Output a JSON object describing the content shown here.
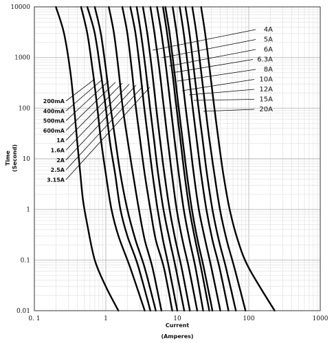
{
  "chart_data": {
    "type": "line",
    "xlabel": "Current",
    "xlabel_unit": "(Amperes)",
    "ylabel": "Time",
    "ylabel_unit": "(Second)",
    "x_scale": "log",
    "y_scale": "log",
    "xlim": [
      0.1,
      1000
    ],
    "ylim": [
      0.01,
      10000
    ],
    "grid": true,
    "x_ticks": [
      {
        "value": 0.1,
        "label": "0. 1"
      },
      {
        "value": 1,
        "label": "1"
      },
      {
        "value": 10,
        "label": "10"
      },
      {
        "value": 100,
        "label": "100"
      },
      {
        "value": 1000,
        "label": "1000"
      }
    ],
    "y_ticks": [
      {
        "value": 0.01,
        "label": "0.01"
      },
      {
        "value": 0.1,
        "label": "0.1"
      },
      {
        "value": 1,
        "label": "1"
      },
      {
        "value": 10,
        "label": "10"
      },
      {
        "value": 100,
        "label": "100"
      },
      {
        "value": 1000,
        "label": "1000"
      },
      {
        "value": 10000,
        "label": "10000"
      }
    ],
    "series": [
      {
        "name": "200mA",
        "points": [
          [
            0.2,
            10000
          ],
          [
            0.26,
            3000
          ],
          [
            0.32,
            500
          ],
          [
            0.36,
            100
          ],
          [
            0.4,
            20
          ],
          [
            0.44,
            5
          ],
          [
            0.48,
            1.5
          ],
          [
            0.55,
            0.5
          ],
          [
            0.7,
            0.1
          ],
          [
            1.0,
            0.03
          ],
          [
            1.5,
            0.01
          ]
        ]
      },
      {
        "name": "400mA",
        "points": [
          [
            0.45,
            10000
          ],
          [
            0.55,
            3000
          ],
          [
            0.65,
            600
          ],
          [
            0.75,
            120
          ],
          [
            0.85,
            25
          ],
          [
            1.0,
            5
          ],
          [
            1.2,
            1
          ],
          [
            1.5,
            0.3
          ],
          [
            2.2,
            0.07
          ],
          [
            3.5,
            0.01
          ]
        ]
      },
      {
        "name": "500mA",
        "points": [
          [
            0.55,
            10000
          ],
          [
            0.7,
            3000
          ],
          [
            0.85,
            500
          ],
          [
            1.0,
            100
          ],
          [
            1.15,
            20
          ],
          [
            1.35,
            5
          ],
          [
            1.6,
            1
          ],
          [
            2.0,
            0.3
          ],
          [
            2.8,
            0.08
          ],
          [
            4.2,
            0.01
          ]
        ]
      },
      {
        "name": "600mA",
        "points": [
          [
            0.7,
            10000
          ],
          [
            0.85,
            3000
          ],
          [
            1.0,
            600
          ],
          [
            1.15,
            120
          ],
          [
            1.35,
            25
          ],
          [
            1.6,
            5
          ],
          [
            2.0,
            1
          ],
          [
            2.6,
            0.25
          ],
          [
            3.5,
            0.07
          ],
          [
            5.0,
            0.01
          ]
        ]
      },
      {
        "name": "1A",
        "points": [
          [
            1.1,
            10000
          ],
          [
            1.3,
            3000
          ],
          [
            1.5,
            600
          ],
          [
            1.7,
            120
          ],
          [
            2.0,
            25
          ],
          [
            2.4,
            5
          ],
          [
            2.9,
            1
          ],
          [
            3.5,
            0.25
          ],
          [
            4.5,
            0.07
          ],
          [
            6.0,
            0.01
          ]
        ]
      },
      {
        "name": "1.6A",
        "points": [
          [
            1.7,
            10000
          ],
          [
            2.0,
            3000
          ],
          [
            2.3,
            600
          ],
          [
            2.6,
            120
          ],
          [
            3.0,
            25
          ],
          [
            3.5,
            5
          ],
          [
            4.2,
            1
          ],
          [
            5.0,
            0.25
          ],
          [
            6.5,
            0.07
          ],
          [
            8.5,
            0.01
          ]
        ]
      },
      {
        "name": "2A",
        "points": [
          [
            2.2,
            10000
          ],
          [
            2.6,
            3000
          ],
          [
            3.0,
            600
          ],
          [
            3.4,
            120
          ],
          [
            3.9,
            25
          ],
          [
            4.5,
            5
          ],
          [
            5.3,
            1
          ],
          [
            6.3,
            0.25
          ],
          [
            7.5,
            0.08
          ],
          [
            10.0,
            0.01
          ]
        ]
      },
      {
        "name": "2.5A",
        "points": [
          [
            2.7,
            10000
          ],
          [
            3.1,
            3000
          ],
          [
            3.6,
            600
          ],
          [
            4.1,
            120
          ],
          [
            4.7,
            25
          ],
          [
            5.4,
            5
          ],
          [
            6.4,
            1
          ],
          [
            7.8,
            0.25
          ],
          [
            9.5,
            0.07
          ],
          [
            12.5,
            0.01
          ]
        ]
      },
      {
        "name": "3.15A",
        "points": [
          [
            3.3,
            10000
          ],
          [
            3.8,
            3000
          ],
          [
            4.4,
            600
          ],
          [
            5.0,
            120
          ],
          [
            5.7,
            25
          ],
          [
            6.6,
            5
          ],
          [
            7.8,
            1
          ],
          [
            9.4,
            0.25
          ],
          [
            11.5,
            0.07
          ],
          [
            15.0,
            0.01
          ]
        ]
      },
      {
        "name": "4A",
        "points": [
          [
            4.2,
            10000
          ],
          [
            4.8,
            3000
          ],
          [
            5.6,
            600
          ],
          [
            6.4,
            120
          ],
          [
            7.3,
            25
          ],
          [
            8.4,
            5
          ],
          [
            9.8,
            1
          ],
          [
            11.8,
            0.25
          ],
          [
            14.5,
            0.07
          ],
          [
            19.0,
            0.01
          ]
        ]
      },
      {
        "name": "5A",
        "points": [
          [
            5.2,
            10000
          ],
          [
            6.0,
            3000
          ],
          [
            7.0,
            600
          ],
          [
            8.0,
            120
          ],
          [
            9.1,
            25
          ],
          [
            10.5,
            5
          ],
          [
            12.3,
            1
          ],
          [
            14.8,
            0.25
          ],
          [
            18.0,
            0.07
          ],
          [
            23.0,
            0.01
          ]
        ]
      },
      {
        "name": "6A",
        "points": [
          [
            6.3,
            10000
          ],
          [
            7.2,
            3000
          ],
          [
            8.4,
            600
          ],
          [
            9.6,
            120
          ],
          [
            11.0,
            25
          ],
          [
            12.6,
            5
          ],
          [
            14.8,
            1
          ],
          [
            17.8,
            0.25
          ],
          [
            21.5,
            0.07
          ],
          [
            28.0,
            0.01
          ]
        ]
      },
      {
        "name": "6.3A",
        "points": [
          [
            6.8,
            10000
          ],
          [
            7.8,
            3000
          ],
          [
            9.0,
            600
          ],
          [
            10.3,
            120
          ],
          [
            11.8,
            25
          ],
          [
            13.6,
            5
          ],
          [
            16.0,
            1
          ],
          [
            19.2,
            0.25
          ],
          [
            23.5,
            0.07
          ],
          [
            31.0,
            0.01
          ]
        ]
      },
      {
        "name": "8A",
        "points": [
          [
            8.6,
            10000
          ],
          [
            9.8,
            3000
          ],
          [
            11.3,
            600
          ],
          [
            12.9,
            120
          ],
          [
            14.8,
            25
          ],
          [
            17.0,
            5
          ],
          [
            20.0,
            1
          ],
          [
            24.5,
            0.25
          ],
          [
            30.0,
            0.07
          ],
          [
            40.0,
            0.01
          ]
        ]
      },
      {
        "name": "10A",
        "points": [
          [
            10.8,
            10000
          ],
          [
            12.3,
            3000
          ],
          [
            14.2,
            600
          ],
          [
            16.2,
            120
          ],
          [
            18.6,
            25
          ],
          [
            21.5,
            5
          ],
          [
            25.5,
            1
          ],
          [
            31.0,
            0.25
          ],
          [
            39.0,
            0.07
          ],
          [
            52.0,
            0.01
          ]
        ]
      },
      {
        "name": "12A",
        "points": [
          [
            13.0,
            10000
          ],
          [
            14.8,
            3000
          ],
          [
            17.0,
            600
          ],
          [
            19.5,
            120
          ],
          [
            22.5,
            25
          ],
          [
            26.0,
            5
          ],
          [
            31.0,
            1
          ],
          [
            38.0,
            0.25
          ],
          [
            48.0,
            0.07
          ],
          [
            66.0,
            0.01
          ]
        ]
      },
      {
        "name": "15A",
        "points": [
          [
            16.2,
            10000
          ],
          [
            18.5,
            3000
          ],
          [
            21.3,
            600
          ],
          [
            24.4,
            120
          ],
          [
            28.0,
            25
          ],
          [
            33.0,
            5
          ],
          [
            39.5,
            1
          ],
          [
            49.0,
            0.25
          ],
          [
            63.0,
            0.07
          ],
          [
            90.0,
            0.01
          ]
        ]
      },
      {
        "name": "20A",
        "points": [
          [
            21.5,
            10000
          ],
          [
            24.5,
            3000
          ],
          [
            28.3,
            600
          ],
          [
            32.5,
            120
          ],
          [
            37.5,
            25
          ],
          [
            44.0,
            5
          ],
          [
            54.0,
            1
          ],
          [
            70.0,
            0.25
          ],
          [
            100.0,
            0.07
          ],
          [
            230.0,
            0.01
          ]
        ]
      }
    ],
    "left_labels": [
      "200mA",
      "400mA",
      "500mA",
      "600mA",
      "1A",
      "1.6A",
      "2A",
      "2.5A",
      "3.15A"
    ],
    "right_labels": [
      "4A",
      "5A",
      "6A",
      "6.3A",
      "8A",
      "10A",
      "12A",
      "15A",
      "20A"
    ]
  }
}
